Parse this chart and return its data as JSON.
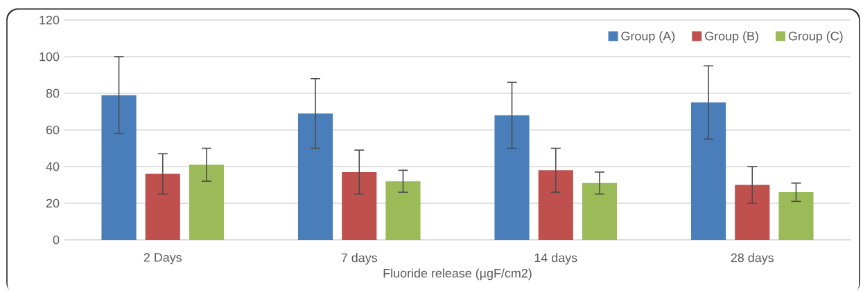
{
  "chart_data": {
    "type": "bar",
    "xlabel": "Fluoride release (µgF/cm2)",
    "categories": [
      "2 Days",
      "7 days",
      "14 days",
      "28 days"
    ],
    "series": [
      {
        "name": "Group (A)",
        "color": "#4a7ebb",
        "values": [
          79,
          69,
          68,
          75
        ],
        "errors": [
          21,
          19,
          18,
          20
        ]
      },
      {
        "name": "Group (B)",
        "color": "#c0504d",
        "values": [
          36,
          37,
          38,
          30
        ],
        "errors": [
          11,
          12,
          12,
          10
        ]
      },
      {
        "name": "Group (C)",
        "color": "#9bbb59",
        "values": [
          41,
          32,
          31,
          26
        ],
        "errors": [
          9,
          6,
          6,
          5
        ]
      }
    ],
    "ylim": [
      0,
      120
    ],
    "yticks": [
      0,
      20,
      40,
      60,
      80,
      100,
      120
    ],
    "grid": "y",
    "legend": "top right"
  }
}
